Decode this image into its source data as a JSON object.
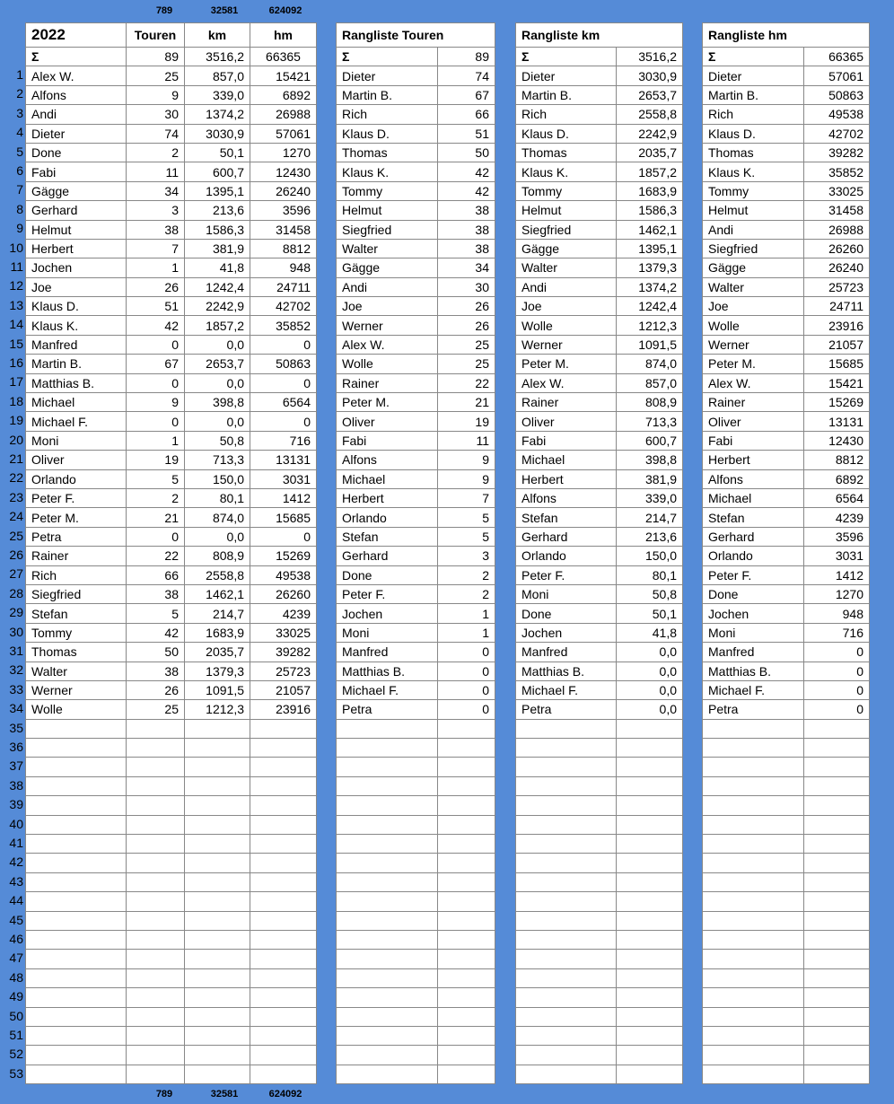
{
  "totals": {
    "touren": "789",
    "km": "32581",
    "hm": "624092"
  },
  "main": {
    "headers": {
      "year": "2022",
      "touren": "Touren",
      "km": "km",
      "hm": "hm"
    },
    "sum": {
      "label": "Σ",
      "touren": "89",
      "km": "3516,2",
      "hm": "66365"
    },
    "rows": [
      [
        "Alex W.",
        "25",
        "857,0",
        "15421"
      ],
      [
        "Alfons",
        "9",
        "339,0",
        "6892"
      ],
      [
        "Andi",
        "30",
        "1374,2",
        "26988"
      ],
      [
        "Dieter",
        "74",
        "3030,9",
        "57061"
      ],
      [
        "Done",
        "2",
        "50,1",
        "1270"
      ],
      [
        "Fabi",
        "11",
        "600,7",
        "12430"
      ],
      [
        "Gägge",
        "34",
        "1395,1",
        "26240"
      ],
      [
        "Gerhard",
        "3",
        "213,6",
        "3596"
      ],
      [
        "Helmut",
        "38",
        "1586,3",
        "31458"
      ],
      [
        "Herbert",
        "7",
        "381,9",
        "8812"
      ],
      [
        "Jochen",
        "1",
        "41,8",
        "948"
      ],
      [
        "Joe",
        "26",
        "1242,4",
        "24711"
      ],
      [
        "Klaus D.",
        "51",
        "2242,9",
        "42702"
      ],
      [
        "Klaus K.",
        "42",
        "1857,2",
        "35852"
      ],
      [
        "Manfred",
        "0",
        "0,0",
        "0"
      ],
      [
        "Martin B.",
        "67",
        "2653,7",
        "50863"
      ],
      [
        "Matthias B.",
        "0",
        "0,0",
        "0"
      ],
      [
        "Michael",
        "9",
        "398,8",
        "6564"
      ],
      [
        "Michael F.",
        "0",
        "0,0",
        "0"
      ],
      [
        "Moni",
        "1",
        "50,8",
        "716"
      ],
      [
        "Oliver",
        "19",
        "713,3",
        "13131"
      ],
      [
        "Orlando",
        "5",
        "150,0",
        "3031"
      ],
      [
        "Peter F.",
        "2",
        "80,1",
        "1412"
      ],
      [
        "Peter M.",
        "21",
        "874,0",
        "15685"
      ],
      [
        "Petra",
        "0",
        "0,0",
        "0"
      ],
      [
        "Rainer",
        "22",
        "808,9",
        "15269"
      ],
      [
        "Rich",
        "66",
        "2558,8",
        "49538"
      ],
      [
        "Siegfried",
        "38",
        "1462,1",
        "26260"
      ],
      [
        "Stefan",
        "5",
        "214,7",
        "4239"
      ],
      [
        "Tommy",
        "42",
        "1683,9",
        "33025"
      ],
      [
        "Thomas",
        "50",
        "2035,7",
        "39282"
      ],
      [
        "Walter",
        "38",
        "1379,3",
        "25723"
      ],
      [
        "Werner",
        "26",
        "1091,5",
        "21057"
      ],
      [
        "Wolle",
        "25",
        "1212,3",
        "23916"
      ]
    ]
  },
  "row_numbers": [
    "1",
    "2",
    "3",
    "4",
    "5",
    "6",
    "7",
    "8",
    "9",
    "10",
    "11",
    "12",
    "13",
    "14",
    "15",
    "16",
    "17",
    "18",
    "19",
    "20",
    "21",
    "22",
    "23",
    "24",
    "25",
    "26",
    "27",
    "28",
    "29",
    "30",
    "31",
    "32",
    "33",
    "34",
    "35",
    "36",
    "37",
    "38",
    "39",
    "40",
    "41",
    "42",
    "43",
    "44",
    "45",
    "46",
    "47",
    "48",
    "49",
    "50",
    "51",
    "52",
    "53"
  ],
  "rankings": [
    {
      "title": "Rangliste  Touren",
      "sum_label": "Σ",
      "sum": "89",
      "rows": [
        [
          "Dieter",
          "74"
        ],
        [
          "Martin B.",
          "67"
        ],
        [
          "Rich",
          "66"
        ],
        [
          "Klaus D.",
          "51"
        ],
        [
          "Thomas",
          "50"
        ],
        [
          "Klaus K.",
          "42"
        ],
        [
          "Tommy",
          "42"
        ],
        [
          "Helmut",
          "38"
        ],
        [
          "Siegfried",
          "38"
        ],
        [
          "Walter",
          "38"
        ],
        [
          "Gägge",
          "34"
        ],
        [
          "Andi",
          "30"
        ],
        [
          "Joe",
          "26"
        ],
        [
          "Werner",
          "26"
        ],
        [
          "Alex W.",
          "25"
        ],
        [
          "Wolle",
          "25"
        ],
        [
          "Rainer",
          "22"
        ],
        [
          "Peter M.",
          "21"
        ],
        [
          "Oliver",
          "19"
        ],
        [
          "Fabi",
          "11"
        ],
        [
          "Alfons",
          "9"
        ],
        [
          "Michael",
          "9"
        ],
        [
          "Herbert",
          "7"
        ],
        [
          "Orlando",
          "5"
        ],
        [
          "Stefan",
          "5"
        ],
        [
          "Gerhard",
          "3"
        ],
        [
          "Done",
          "2"
        ],
        [
          "Peter F.",
          "2"
        ],
        [
          "Jochen",
          "1"
        ],
        [
          "Moni",
          "1"
        ],
        [
          "Manfred",
          "0"
        ],
        [
          "Matthias B.",
          "0"
        ],
        [
          "Michael F.",
          "0"
        ],
        [
          "Petra",
          "0"
        ]
      ]
    },
    {
      "title": "Rangliste  km",
      "sum_label": "Σ",
      "sum": "3516,2",
      "rows": [
        [
          "Dieter",
          "3030,9"
        ],
        [
          "Martin B.",
          "2653,7"
        ],
        [
          "Rich",
          "2558,8"
        ],
        [
          "Klaus D.",
          "2242,9"
        ],
        [
          "Thomas",
          "2035,7"
        ],
        [
          "Klaus K.",
          "1857,2"
        ],
        [
          "Tommy",
          "1683,9"
        ],
        [
          "Helmut",
          "1586,3"
        ],
        [
          "Siegfried",
          "1462,1"
        ],
        [
          "Gägge",
          "1395,1"
        ],
        [
          "Walter",
          "1379,3"
        ],
        [
          "Andi",
          "1374,2"
        ],
        [
          "Joe",
          "1242,4"
        ],
        [
          "Wolle",
          "1212,3"
        ],
        [
          "Werner",
          "1091,5"
        ],
        [
          "Peter M.",
          "874,0"
        ],
        [
          "Alex W.",
          "857,0"
        ],
        [
          "Rainer",
          "808,9"
        ],
        [
          "Oliver",
          "713,3"
        ],
        [
          "Fabi",
          "600,7"
        ],
        [
          "Michael",
          "398,8"
        ],
        [
          "Herbert",
          "381,9"
        ],
        [
          "Alfons",
          "339,0"
        ],
        [
          "Stefan",
          "214,7"
        ],
        [
          "Gerhard",
          "213,6"
        ],
        [
          "Orlando",
          "150,0"
        ],
        [
          "Peter F.",
          "80,1"
        ],
        [
          "Moni",
          "50,8"
        ],
        [
          "Done",
          "50,1"
        ],
        [
          "Jochen",
          "41,8"
        ],
        [
          "Manfred",
          "0,0"
        ],
        [
          "Matthias B.",
          "0,0"
        ],
        [
          "Michael F.",
          "0,0"
        ],
        [
          "Petra",
          "0,0"
        ]
      ]
    },
    {
      "title": "Rangliste  hm",
      "sum_label": "Σ",
      "sum": "66365",
      "rows": [
        [
          "Dieter",
          "57061"
        ],
        [
          "Martin B.",
          "50863"
        ],
        [
          "Rich",
          "49538"
        ],
        [
          "Klaus D.",
          "42702"
        ],
        [
          "Thomas",
          "39282"
        ],
        [
          "Klaus K.",
          "35852"
        ],
        [
          "Tommy",
          "33025"
        ],
        [
          "Helmut",
          "31458"
        ],
        [
          "Andi",
          "26988"
        ],
        [
          "Siegfried",
          "26260"
        ],
        [
          "Gägge",
          "26240"
        ],
        [
          "Walter",
          "25723"
        ],
        [
          "Joe",
          "24711"
        ],
        [
          "Wolle",
          "23916"
        ],
        [
          "Werner",
          "21057"
        ],
        [
          "Peter M.",
          "15685"
        ],
        [
          "Alex W.",
          "15421"
        ],
        [
          "Rainer",
          "15269"
        ],
        [
          "Oliver",
          "13131"
        ],
        [
          "Fabi",
          "12430"
        ],
        [
          "Herbert",
          "8812"
        ],
        [
          "Alfons",
          "6892"
        ],
        [
          "Michael",
          "6564"
        ],
        [
          "Stefan",
          "4239"
        ],
        [
          "Gerhard",
          "3596"
        ],
        [
          "Orlando",
          "3031"
        ],
        [
          "Peter F.",
          "1412"
        ],
        [
          "Done",
          "1270"
        ],
        [
          "Jochen",
          "948"
        ],
        [
          "Moni",
          "716"
        ],
        [
          "Manfred",
          "0"
        ],
        [
          "Matthias B.",
          "0"
        ],
        [
          "Michael F.",
          "0"
        ],
        [
          "Petra",
          "0"
        ]
      ]
    }
  ]
}
